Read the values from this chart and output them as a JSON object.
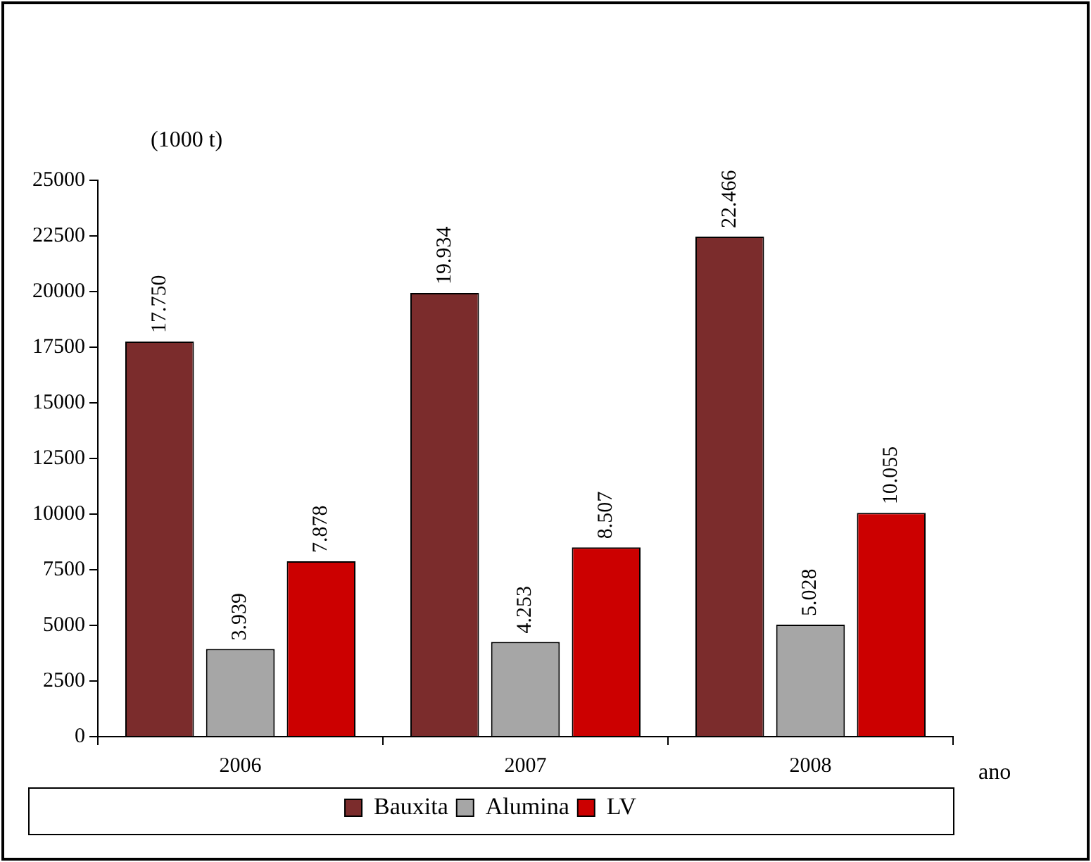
{
  "chart_data": {
    "type": "bar",
    "ylabel": "(1000 t)",
    "xlabel": "ano",
    "categories": [
      "2006",
      "2007",
      "2008"
    ],
    "series": [
      {
        "name": "Bauxita",
        "color": "#7b2c2c",
        "values": [
          17750,
          19934,
          22466
        ],
        "value_labels": [
          "17.750",
          "19.934",
          "22.466"
        ]
      },
      {
        "name": "Alumina",
        "color": "#a6a6a6",
        "values": [
          3939,
          4253,
          5028
        ],
        "value_labels": [
          "3.939",
          "4.253",
          "5.028"
        ]
      },
      {
        "name": "LV",
        "color": "#cc0000",
        "values": [
          7878,
          8507,
          10055
        ],
        "value_labels": [
          "7.878",
          "8.507",
          "10.055"
        ]
      }
    ],
    "ylim": [
      0,
      25000
    ],
    "yticks": [
      0,
      2500,
      5000,
      7500,
      10000,
      12500,
      15000,
      17500,
      20000,
      22500,
      25000
    ],
    "grid": false,
    "legend": "bottom"
  }
}
